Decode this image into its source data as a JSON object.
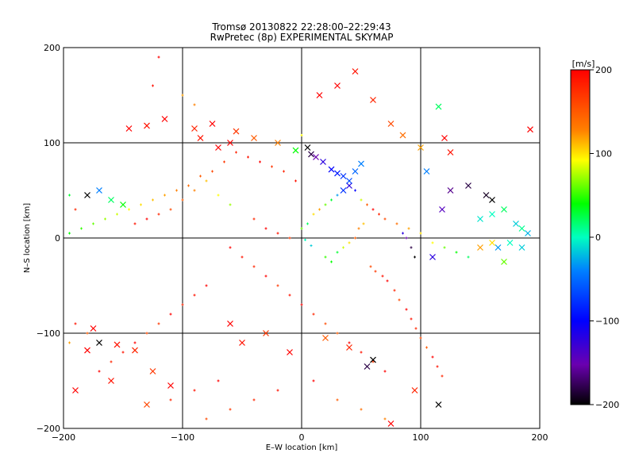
{
  "chart_data": {
    "type": "scatter",
    "title_line1": "Tromsø 20130822 22:28:00–22:29:43",
    "title_line2": "RwPretec (8p) EXPERIMENTAL SKYMAP",
    "xlabel": "E–W location [km]",
    "ylabel": "N–S location [km]",
    "xlim": [
      -200,
      200
    ],
    "ylim": [
      -200,
      200
    ],
    "xticks": [
      "−200",
      "−100",
      "0",
      "100",
      "200"
    ],
    "yticks": [
      "−200",
      "−100",
      "0",
      "100",
      "200"
    ],
    "grid": true,
    "colorbar": {
      "label": "[m/s]",
      "range": [
        -200,
        200
      ],
      "ticks": [
        "200",
        "100",
        "0",
        "−100",
        "−200"
      ],
      "colormap": "rainbow (black-purple-blue-cyan-green-yellow-red)"
    },
    "markers": {
      "dot": "small cross",
      "big": "x"
    },
    "points_note": "thousands of velocity points; representative sample",
    "points": [
      [
        -40,
        20,
        180,
        0
      ],
      [
        -30,
        10,
        200,
        0
      ],
      [
        -20,
        5,
        190,
        0
      ],
      [
        -10,
        0,
        170,
        0
      ],
      [
        0,
        10,
        60,
        0
      ],
      [
        5,
        15,
        20,
        0
      ],
      [
        3,
        -2,
        0,
        0
      ],
      [
        8,
        -8,
        -20,
        0
      ],
      [
        10,
        25,
        100,
        0
      ],
      [
        15,
        30,
        120,
        0
      ],
      [
        20,
        35,
        60,
        0
      ],
      [
        25,
        40,
        30,
        0
      ],
      [
        30,
        45,
        -40,
        0
      ],
      [
        35,
        50,
        -80,
        1
      ],
      [
        40,
        55,
        -120,
        1
      ],
      [
        45,
        50,
        -100,
        0
      ],
      [
        50,
        40,
        80,
        0
      ],
      [
        55,
        35,
        150,
        0
      ],
      [
        60,
        30,
        200,
        0
      ],
      [
        65,
        25,
        180,
        0
      ],
      [
        70,
        20,
        160,
        0
      ],
      [
        80,
        15,
        140,
        0
      ],
      [
        90,
        10,
        120,
        0
      ],
      [
        100,
        5,
        100,
        0
      ],
      [
        110,
        -5,
        90,
        0
      ],
      [
        120,
        -10,
        60,
        0
      ],
      [
        130,
        -15,
        40,
        0
      ],
      [
        140,
        -20,
        20,
        0
      ],
      [
        150,
        20,
        -10,
        1
      ],
      [
        160,
        25,
        0,
        1
      ],
      [
        170,
        30,
        20,
        1
      ],
      [
        180,
        15,
        -20,
        1
      ],
      [
        185,
        10,
        10,
        1
      ],
      [
        190,
        5,
        -30,
        1
      ],
      [
        175,
        -5,
        0,
        1
      ],
      [
        165,
        -10,
        -40,
        1
      ],
      [
        -60,
        -10,
        200,
        0
      ],
      [
        -50,
        -20,
        190,
        0
      ],
      [
        -40,
        -30,
        180,
        0
      ],
      [
        -30,
        -40,
        200,
        0
      ],
      [
        -20,
        -50,
        170,
        0
      ],
      [
        -10,
        -60,
        190,
        0
      ],
      [
        0,
        -70,
        200,
        0
      ],
      [
        10,
        -80,
        180,
        0
      ],
      [
        20,
        -90,
        160,
        0
      ],
      [
        30,
        -100,
        150,
        0
      ],
      [
        40,
        -110,
        200,
        0
      ],
      [
        50,
        -120,
        190,
        0
      ],
      [
        60,
        -130,
        170,
        0
      ],
      [
        70,
        -140,
        200,
        0
      ],
      [
        -80,
        -50,
        200,
        0
      ],
      [
        -90,
        -60,
        190,
        0
      ],
      [
        -100,
        -70,
        180,
        0
      ],
      [
        -110,
        -80,
        200,
        0
      ],
      [
        -120,
        -90,
        170,
        0
      ],
      [
        -130,
        -100,
        160,
        0
      ],
      [
        -140,
        -110,
        200,
        0
      ],
      [
        -150,
        -120,
        190,
        0
      ],
      [
        -160,
        -130,
        180,
        0
      ],
      [
        -170,
        -140,
        200,
        0
      ],
      [
        -180,
        -100,
        150,
        0
      ],
      [
        -190,
        -90,
        190,
        0
      ],
      [
        -195,
        -110,
        120,
        0
      ],
      [
        -100,
        40,
        150,
        0
      ],
      [
        -90,
        50,
        130,
        0
      ],
      [
        -80,
        60,
        110,
        0
      ],
      [
        -70,
        45,
        90,
        0
      ],
      [
        -60,
        35,
        70,
        0
      ],
      [
        -110,
        30,
        160,
        0
      ],
      [
        -120,
        25,
        180,
        0
      ],
      [
        -130,
        20,
        200,
        0
      ],
      [
        -140,
        15,
        190,
        0
      ],
      [
        -150,
        35,
        40,
        1
      ],
      [
        -160,
        40,
        20,
        1
      ],
      [
        -170,
        50,
        -50,
        1
      ],
      [
        -180,
        45,
        -200,
        1
      ],
      [
        -190,
        30,
        180,
        0
      ],
      [
        -195,
        45,
        30,
        0
      ],
      [
        -145,
        115,
        200,
        1
      ],
      [
        -130,
        118,
        190,
        1
      ],
      [
        -115,
        125,
        200,
        1
      ],
      [
        -90,
        115,
        180,
        1
      ],
      [
        -75,
        120,
        200,
        1
      ],
      [
        -55,
        112,
        170,
        1
      ],
      [
        -40,
        105,
        150,
        1
      ],
      [
        -20,
        100,
        130,
        1
      ],
      [
        0,
        108,
        90,
        0
      ],
      [
        5,
        95,
        -200,
        1
      ],
      [
        8,
        88,
        -180,
        1
      ],
      [
        12,
        85,
        -150,
        1
      ],
      [
        18,
        80,
        -120,
        1
      ],
      [
        25,
        72,
        -100,
        1
      ],
      [
        30,
        68,
        -90,
        1
      ],
      [
        35,
        65,
        -80,
        1
      ],
      [
        40,
        60,
        -70,
        1
      ],
      [
        45,
        70,
        -60,
        1
      ],
      [
        50,
        78,
        -50,
        1
      ],
      [
        -5,
        92,
        40,
        1
      ],
      [
        15,
        150,
        200,
        1
      ],
      [
        30,
        160,
        200,
        1
      ],
      [
        45,
        175,
        190,
        1
      ],
      [
        60,
        145,
        180,
        1
      ],
      [
        75,
        120,
        160,
        1
      ],
      [
        85,
        108,
        140,
        1
      ],
      [
        100,
        95,
        120,
        1
      ],
      [
        115,
        138,
        20,
        1
      ],
      [
        120,
        105,
        200,
        1
      ],
      [
        125,
        90,
        190,
        1
      ],
      [
        105,
        70,
        -50,
        1
      ],
      [
        110,
        -20,
        -120,
        1
      ],
      [
        115,
        -175,
        -200,
        1
      ],
      [
        95,
        -160,
        180,
        1
      ],
      [
        75,
        -195,
        200,
        1
      ],
      [
        60,
        -128,
        -200,
        1
      ],
      [
        55,
        -135,
        -180,
        1
      ],
      [
        -170,
        -110,
        -200,
        1
      ],
      [
        -180,
        -118,
        200,
        1
      ],
      [
        -155,
        -112,
        190,
        1
      ],
      [
        -140,
        -118,
        180,
        1
      ],
      [
        -125,
        -140,
        170,
        1
      ],
      [
        -110,
        -155,
        200,
        1
      ],
      [
        -160,
        -150,
        190,
        1
      ],
      [
        -175,
        -95,
        200,
        1
      ],
      [
        -130,
        -175,
        160,
        1
      ],
      [
        -190,
        -160,
        200,
        1
      ],
      [
        -60,
        -90,
        200,
        1
      ],
      [
        -50,
        -110,
        190,
        1
      ],
      [
        -30,
        -100,
        170,
        1
      ],
      [
        -10,
        -120,
        200,
        1
      ],
      [
        20,
        -105,
        150,
        1
      ],
      [
        40,
        -115,
        180,
        1
      ],
      [
        -90,
        140,
        130,
        0
      ],
      [
        -100,
        150,
        120,
        0
      ],
      [
        -120,
        190,
        200,
        0
      ],
      [
        -125,
        160,
        190,
        0
      ],
      [
        -60,
        100,
        200,
        1
      ],
      [
        -70,
        95,
        200,
        1
      ],
      [
        -85,
        105,
        190,
        1
      ],
      [
        192,
        114,
        200,
        1
      ],
      [
        185,
        -10,
        -20,
        1
      ],
      [
        170,
        -25,
        60,
        1
      ],
      [
        160,
        -5,
        100,
        1
      ],
      [
        150,
        -10,
        120,
        1
      ],
      [
        160,
        40,
        -200,
        1
      ],
      [
        155,
        45,
        -190,
        1
      ],
      [
        140,
        55,
        -180,
        1
      ],
      [
        125,
        50,
        -160,
        1
      ],
      [
        118,
        30,
        -140,
        1
      ],
      [
        95,
        -20,
        -200,
        0
      ],
      [
        92,
        -10,
        -180,
        0
      ],
      [
        88,
        0,
        -150,
        0
      ],
      [
        85,
        5,
        -120,
        0
      ],
      [
        20,
        -20,
        50,
        0
      ],
      [
        25,
        -25,
        40,
        0
      ],
      [
        30,
        -15,
        30,
        0
      ],
      [
        35,
        -10,
        80,
        0
      ],
      [
        40,
        -5,
        100,
        0
      ],
      [
        45,
        0,
        150,
        0
      ],
      [
        48,
        10,
        130,
        0
      ],
      [
        52,
        15,
        110,
        0
      ],
      [
        58,
        -30,
        160,
        0
      ],
      [
        62,
        -35,
        170,
        0
      ],
      [
        68,
        -40,
        190,
        0
      ],
      [
        72,
        -45,
        200,
        0
      ],
      [
        78,
        -55,
        180,
        0
      ],
      [
        82,
        -65,
        160,
        0
      ],
      [
        88,
        -75,
        200,
        0
      ],
      [
        92,
        -85,
        190,
        0
      ],
      [
        96,
        -95,
        180,
        0
      ],
      [
        100,
        -105,
        160,
        0
      ],
      [
        105,
        -115,
        150,
        0
      ],
      [
        110,
        -125,
        200,
        0
      ],
      [
        114,
        -135,
        190,
        0
      ],
      [
        118,
        -145,
        180,
        0
      ],
      [
        -5,
        60,
        190,
        0
      ],
      [
        -15,
        70,
        180,
        0
      ],
      [
        -25,
        75,
        170,
        0
      ],
      [
        -35,
        80,
        200,
        0
      ],
      [
        -45,
        85,
        190,
        0
      ],
      [
        -55,
        90,
        180,
        0
      ],
      [
        -65,
        80,
        170,
        0
      ],
      [
        -75,
        70,
        160,
        0
      ],
      [
        -85,
        65,
        150,
        0
      ],
      [
        -95,
        55,
        140,
        0
      ],
      [
        -105,
        50,
        130,
        0
      ],
      [
        -115,
        45,
        120,
        0
      ],
      [
        -125,
        40,
        110,
        0
      ],
      [
        -135,
        35,
        100,
        0
      ],
      [
        -145,
        30,
        90,
        0
      ],
      [
        -155,
        25,
        80,
        0
      ],
      [
        -165,
        20,
        70,
        0
      ],
      [
        -175,
        15,
        60,
        0
      ],
      [
        -185,
        10,
        50,
        0
      ],
      [
        -195,
        5,
        40,
        0
      ],
      [
        10,
        -150,
        200,
        0
      ],
      [
        -20,
        -160,
        190,
        0
      ],
      [
        -40,
        -170,
        180,
        0
      ],
      [
        -60,
        -180,
        170,
        0
      ],
      [
        -80,
        -190,
        160,
        0
      ],
      [
        30,
        -170,
        150,
        0
      ],
      [
        50,
        -180,
        140,
        0
      ],
      [
        70,
        -190,
        130,
        0
      ],
      [
        -70,
        -150,
        200,
        0
      ],
      [
        -90,
        -160,
        190,
        0
      ],
      [
        -110,
        -170,
        180,
        0
      ]
    ]
  }
}
